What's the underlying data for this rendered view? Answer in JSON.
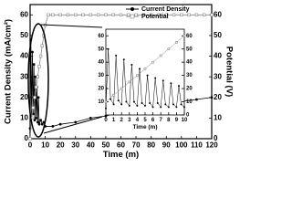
{
  "chart_data": [
    {
      "type": "line",
      "x_label": "Time (m)",
      "y_label": "Current Density (mA/cm²)",
      "y2_label": "Potential (V)",
      "xlim": [
        0,
        120
      ],
      "xticks": [
        0,
        10,
        20,
        30,
        40,
        50,
        60,
        70,
        80,
        90,
        100,
        110,
        120
      ],
      "ylim": [
        0,
        65
      ],
      "yticks": [
        0,
        10,
        20,
        30,
        40,
        50,
        60
      ],
      "y2lim": [
        0,
        65
      ],
      "y2ticks": [
        0,
        10,
        20,
        30,
        40,
        50,
        60
      ],
      "legend": "top",
      "series": [
        {
          "name": "Current Density",
          "color": "#000000",
          "marker": "dot",
          "x": [
            0,
            0.5,
            1,
            1.5,
            2,
            2.5,
            3,
            3.5,
            4,
            4.5,
            5,
            5.5,
            6,
            7,
            8,
            9,
            10,
            15,
            20,
            30,
            40,
            50,
            60,
            70,
            80,
            90,
            100,
            110,
            120
          ],
          "values": [
            5,
            48,
            10,
            42,
            12,
            36,
            9,
            30,
            10,
            25,
            8,
            20,
            7,
            9,
            7,
            8,
            6,
            6,
            7,
            8,
            10,
            11,
            13,
            14,
            15,
            17,
            18,
            19,
            20
          ]
        },
        {
          "name": "Potential",
          "color": "#888888",
          "marker": "square",
          "axis": "y2",
          "x": [
            0,
            1,
            2,
            3,
            4,
            5,
            6,
            7,
            8,
            9,
            10,
            12,
            15,
            20,
            25,
            30,
            35,
            40,
            45,
            50,
            55,
            60,
            65,
            70,
            75,
            80,
            85,
            90,
            95,
            100,
            105,
            110,
            115,
            120
          ],
          "values": [
            0,
            10,
            15,
            20,
            25,
            30,
            35,
            40,
            45,
            50,
            55,
            60,
            60,
            60,
            60,
            60,
            60,
            60,
            60,
            60,
            60,
            60,
            60,
            60,
            60,
            60,
            60,
            60,
            60,
            60,
            60,
            60,
            60,
            60
          ]
        }
      ]
    },
    {
      "type": "line",
      "x_label": "Time (m)",
      "xlim": [
        0,
        10
      ],
      "xticks": [
        0,
        1,
        2,
        3,
        4,
        5,
        6,
        7,
        8,
        9,
        10
      ],
      "ylim": [
        0,
        65
      ],
      "yticks": [
        10,
        20,
        30,
        40,
        50,
        60
      ],
      "y2lim": [
        0,
        65
      ],
      "y2ticks": [
        0,
        10,
        20,
        30,
        40,
        50,
        60
      ],
      "series": [
        {
          "name": "Current Density",
          "color": "#000000",
          "marker": "dot",
          "x": [
            0,
            0.3,
            0.6,
            1,
            1.3,
            1.6,
            2,
            2.3,
            2.6,
            3,
            3.3,
            3.6,
            4,
            4.3,
            4.6,
            5,
            5.3,
            5.6,
            6,
            6.3,
            6.6,
            7,
            7.3,
            7.6,
            8,
            8.3,
            8.6,
            9,
            9.3,
            9.6,
            10
          ],
          "values": [
            5,
            50,
            12,
            8,
            45,
            11,
            8,
            42,
            10,
            7,
            38,
            10,
            7,
            35,
            9,
            7,
            30,
            9,
            6,
            28,
            9,
            6,
            26,
            8,
            6,
            24,
            8,
            6,
            22,
            8,
            6
          ]
        },
        {
          "name": "Potential",
          "color": "#888888",
          "marker": "square",
          "axis": "y2",
          "x": [
            0,
            1,
            2,
            3,
            4,
            5,
            6,
            7,
            8,
            9,
            10
          ],
          "values": [
            10,
            15,
            20,
            25,
            30,
            35,
            40,
            45,
            50,
            55,
            60
          ]
        }
      ]
    }
  ]
}
